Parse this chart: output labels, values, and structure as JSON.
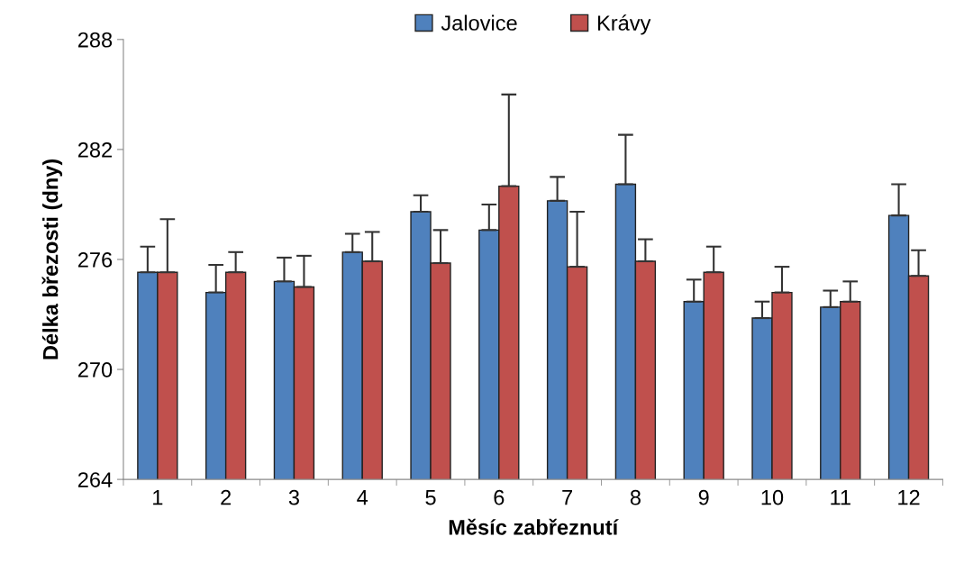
{
  "chart_data": {
    "type": "bar",
    "xlabel": "Měsíc zabřeznutí",
    "ylabel": "Délka březosti (dny)",
    "categories": [
      "1",
      "2",
      "3",
      "4",
      "5",
      "6",
      "7",
      "8",
      "9",
      "10",
      "11",
      "12"
    ],
    "series": [
      {
        "name": "Jalovice",
        "color": "#4f81bd",
        "values": [
          275.3,
          274.2,
          274.8,
          276.4,
          278.6,
          277.6,
          279.2,
          280.1,
          273.7,
          272.8,
          273.4,
          278.4
        ],
        "errors": [
          [
            275.3,
            276.7
          ],
          [
            274.2,
            275.7
          ],
          [
            274.8,
            276.1
          ],
          [
            276.4,
            277.4
          ],
          [
            278.6,
            279.5
          ],
          [
            277.6,
            279.0
          ],
          [
            279.2,
            280.5
          ],
          [
            280.1,
            282.8
          ],
          [
            273.7,
            274.9
          ],
          [
            272.8,
            273.7
          ],
          [
            273.4,
            274.3
          ],
          [
            278.4,
            280.1
          ]
        ]
      },
      {
        "name": "Krávy",
        "color": "#c0504d",
        "values": [
          275.3,
          275.3,
          274.5,
          275.9,
          275.8,
          280.0,
          275.6,
          275.9,
          275.3,
          274.2,
          273.7,
          275.1
        ],
        "errors": [
          [
            275.3,
            278.2
          ],
          [
            275.3,
            276.4
          ],
          [
            274.5,
            276.2
          ],
          [
            275.9,
            277.5
          ],
          [
            275.8,
            277.6
          ],
          [
            280.0,
            285.0
          ],
          [
            275.6,
            278.6
          ],
          [
            275.9,
            277.1
          ],
          [
            275.3,
            276.7
          ],
          [
            274.2,
            275.6
          ],
          [
            273.7,
            274.8
          ],
          [
            275.1,
            276.5
          ]
        ]
      }
    ],
    "ylim": [
      264,
      288
    ],
    "yticks": [
      264,
      270,
      276,
      282,
      288
    ],
    "grid": false,
    "legend": "top"
  }
}
